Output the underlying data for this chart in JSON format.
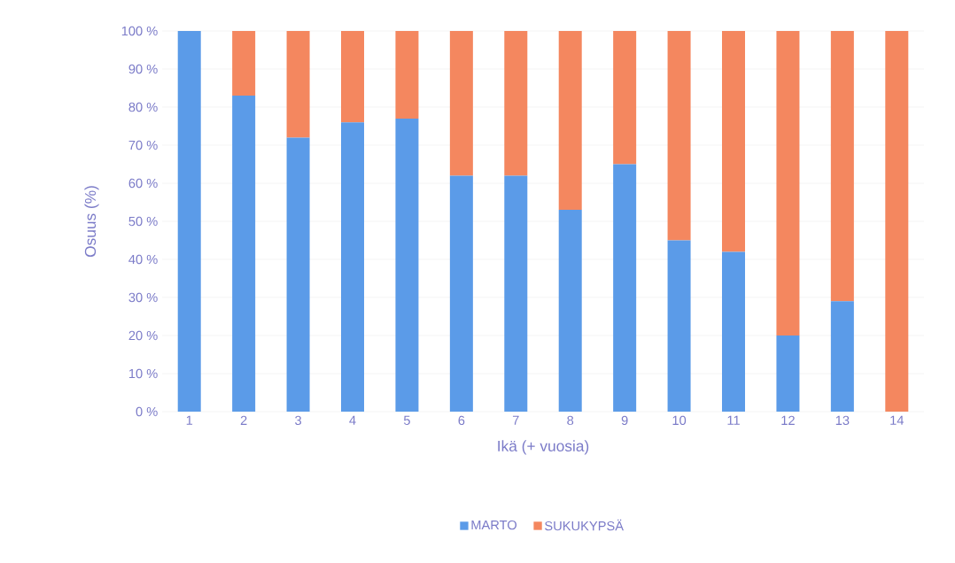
{
  "chart_data": {
    "type": "bar",
    "stacked": true,
    "xlabel": "Ikä (+ vuosia)",
    "ylabel": "Osuus (%)",
    "categories": [
      "1",
      "2",
      "3",
      "4",
      "5",
      "6",
      "7",
      "8",
      "9",
      "10",
      "11",
      "12",
      "13",
      "14"
    ],
    "series": [
      {
        "name": "MARTO",
        "color": "#5b9be8",
        "values": [
          100,
          83,
          72,
          76,
          77,
          62,
          62,
          53,
          65,
          45,
          42,
          20,
          29,
          0
        ]
      },
      {
        "name": "SUKUKYPSÄ",
        "color": "#f4875f",
        "values": [
          0,
          17,
          28,
          24,
          23,
          38,
          38,
          47,
          35,
          55,
          58,
          80,
          71,
          100
        ]
      }
    ],
    "ylim": [
      0,
      100
    ],
    "yticks": [
      {
        "value": 0,
        "label": "0 %"
      },
      {
        "value": 10,
        "label": "10 %"
      },
      {
        "value": 20,
        "label": "20 %"
      },
      {
        "value": 30,
        "label": "30 %"
      },
      {
        "value": 40,
        "label": "40 %"
      },
      {
        "value": 50,
        "label": "50 %"
      },
      {
        "value": 60,
        "label": "60 %"
      },
      {
        "value": 70,
        "label": "70 %"
      },
      {
        "value": 80,
        "label": "80 %"
      },
      {
        "value": 90,
        "label": "90 %"
      },
      {
        "value": 100,
        "label": "100 %"
      }
    ],
    "grid": "y",
    "legend": "bottom"
  }
}
